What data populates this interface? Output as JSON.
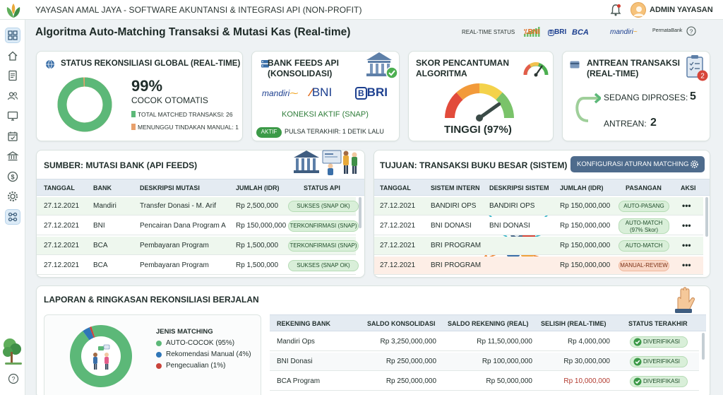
{
  "app": {
    "title": "YAYASAN AMAL JAYA - SOFTWARE AKUNTANSI & INTEGRASI API (NON-PROFIT)",
    "user": "ADMIN YAYASAN"
  },
  "page": {
    "title": "Algoritma Auto-Matching Transaksi & Mutasi Kas (Real-time)",
    "status_label": "REAL-TIME STATUS"
  },
  "header_banks": [
    "BNI",
    "BRI",
    "BCA",
    "mandiri",
    "PermataBank"
  ],
  "status_card": {
    "title": "STATUS REKONSILIASI GLOBAL (REAL-TIME)",
    "percent": "99%",
    "percent_value": 99,
    "caption": "COCOK OTOMATIS",
    "matched_label": "TOTAL MATCHED TRANSAKSI: 26",
    "pending_label": "MENUNGGU TINDAKAN MANUAL: 1"
  },
  "feeds_card": {
    "title_line1": "BANK FEEDS API",
    "title_line2": "(KONSOLIDASI)",
    "banks": [
      "mandiri",
      "BNI",
      "BRI"
    ],
    "connection": "KONEKSI AKTIF (SNAP)",
    "active_badge": "AKTIF",
    "last_pulse": "PULSA TERAKHIR: 1 DETIK LALU"
  },
  "score_card": {
    "title_line1": "SKOR PENCANTUMAN",
    "title_line2": "ALGORITMA",
    "value_label": "TINGGI (97%)",
    "value": 97
  },
  "queue_card": {
    "title_line1": "ANTREAN TRANSAKSI",
    "title_line2": "(REAL-TIME)",
    "badge": "2",
    "processing_label": "SEDANG DIPROSES:",
    "processing_value": "5",
    "queue_label": "ANTREAN:",
    "queue_value": "2"
  },
  "source": {
    "title": "SUMBER: MUTASI BANK (API FEEDS)",
    "headers": [
      "TANGGAL",
      "BANK",
      "DESKRIPSI MUTASI",
      "JUMLAH (IDR)",
      "STATUS API"
    ],
    "rows": [
      {
        "date": "27.12.2021",
        "bank": "Mandiri",
        "desc": "Transfer Donasi - M. Arif",
        "amount": "Rp 2,500,000",
        "status": "SUKSES (SNAP OK)"
      },
      {
        "date": "27.12.2021",
        "bank": "BNI",
        "desc": "Pencairan Dana Program A",
        "amount": "Rp 150,000,000",
        "status": "TERKONFIRMASI (SNAP)"
      },
      {
        "date": "27.12.2021",
        "bank": "BCA",
        "desc": "Pembayaran Program",
        "amount": "Rp 1,500,000",
        "status": "TERKONFIRMASI (SNAP)"
      },
      {
        "date": "27.12.2021",
        "bank": "BCA",
        "desc": "Pembayaran Program",
        "amount": "Rp 1,500,000",
        "status": "SUKSES (SNAP OK)"
      }
    ]
  },
  "target": {
    "title": "TUJUAN: TRANSAKSI BUKU BESAR (SISTEM)",
    "config_button": "KONFIGURASI ATURAN MATCHING",
    "headers": [
      "TANGGAL",
      "SISTEM INTERN",
      "DESKRIPSI SISTEM",
      "JUMLAH (IDR)",
      "PASANGAN",
      "AKSI"
    ],
    "rows": [
      {
        "date": "27.12.2021",
        "system": "BANDIRI OPS",
        "desc": "BANDIRI OPS",
        "amount": "Rp 150,000,000",
        "pair": "AUTO-PASANG",
        "action": "•••"
      },
      {
        "date": "27.12.2021",
        "system": "BNI DONASI",
        "desc": "BNI DONASI",
        "amount": "Rp 150,000,000",
        "pair": "AUTO-MATCH (97% Skor)",
        "action": "•••"
      },
      {
        "date": "27.12.2021",
        "system": "BRI PROGRAM",
        "desc": "",
        "amount": "Rp 150,000,000",
        "pair": "AUTO-MATCH",
        "action": "•••"
      },
      {
        "date": "27.12.2021",
        "system": "BRI PROGRAM",
        "desc": "",
        "amount": "Rp 150,000,000",
        "pair": "MANUAL-REVIEW",
        "action": "•••"
      }
    ]
  },
  "report": {
    "title": "LAPORAN & RINGKASAN REKONSILIASI BERJALAN",
    "legend_title": "JENIS MATCHING",
    "legend": [
      {
        "label": "AUTO-COCOK (95%)",
        "value": 95,
        "color": "#5cb878"
      },
      {
        "label": "Rekomendasi Manual (4%)",
        "value": 4,
        "color": "#2f76b7"
      },
      {
        "label": "Pengecualian (1%)",
        "value": 1,
        "color": "#c9443b"
      }
    ],
    "headers": [
      "REKENING BANK",
      "SALDO KONSOLIDASI",
      "SALDO REKENING (REAL)",
      "SELISIH (REAL-TIME)",
      "STATUS TERAKHIR"
    ],
    "rows": [
      {
        "account": "Mandiri Ops",
        "consolidated": "Rp 3,250,000,000",
        "real": "Rp 11,50,000,000",
        "diff": "Rp 4,000,000",
        "status": "DIVERIFIKASI"
      },
      {
        "account": "BNI Donasi",
        "consolidated": "Rp 250,000,000",
        "real": "Rp 100,000,000",
        "diff": "Rp 30,000,000",
        "status": "DIVERIFIKASI"
      },
      {
        "account": "BCA Program",
        "consolidated": "Rp 250,000,000",
        "real": "Rp 50,000,000",
        "diff": "Rp 10,000,000",
        "status": "DIVERIFIKASI"
      }
    ]
  }
}
